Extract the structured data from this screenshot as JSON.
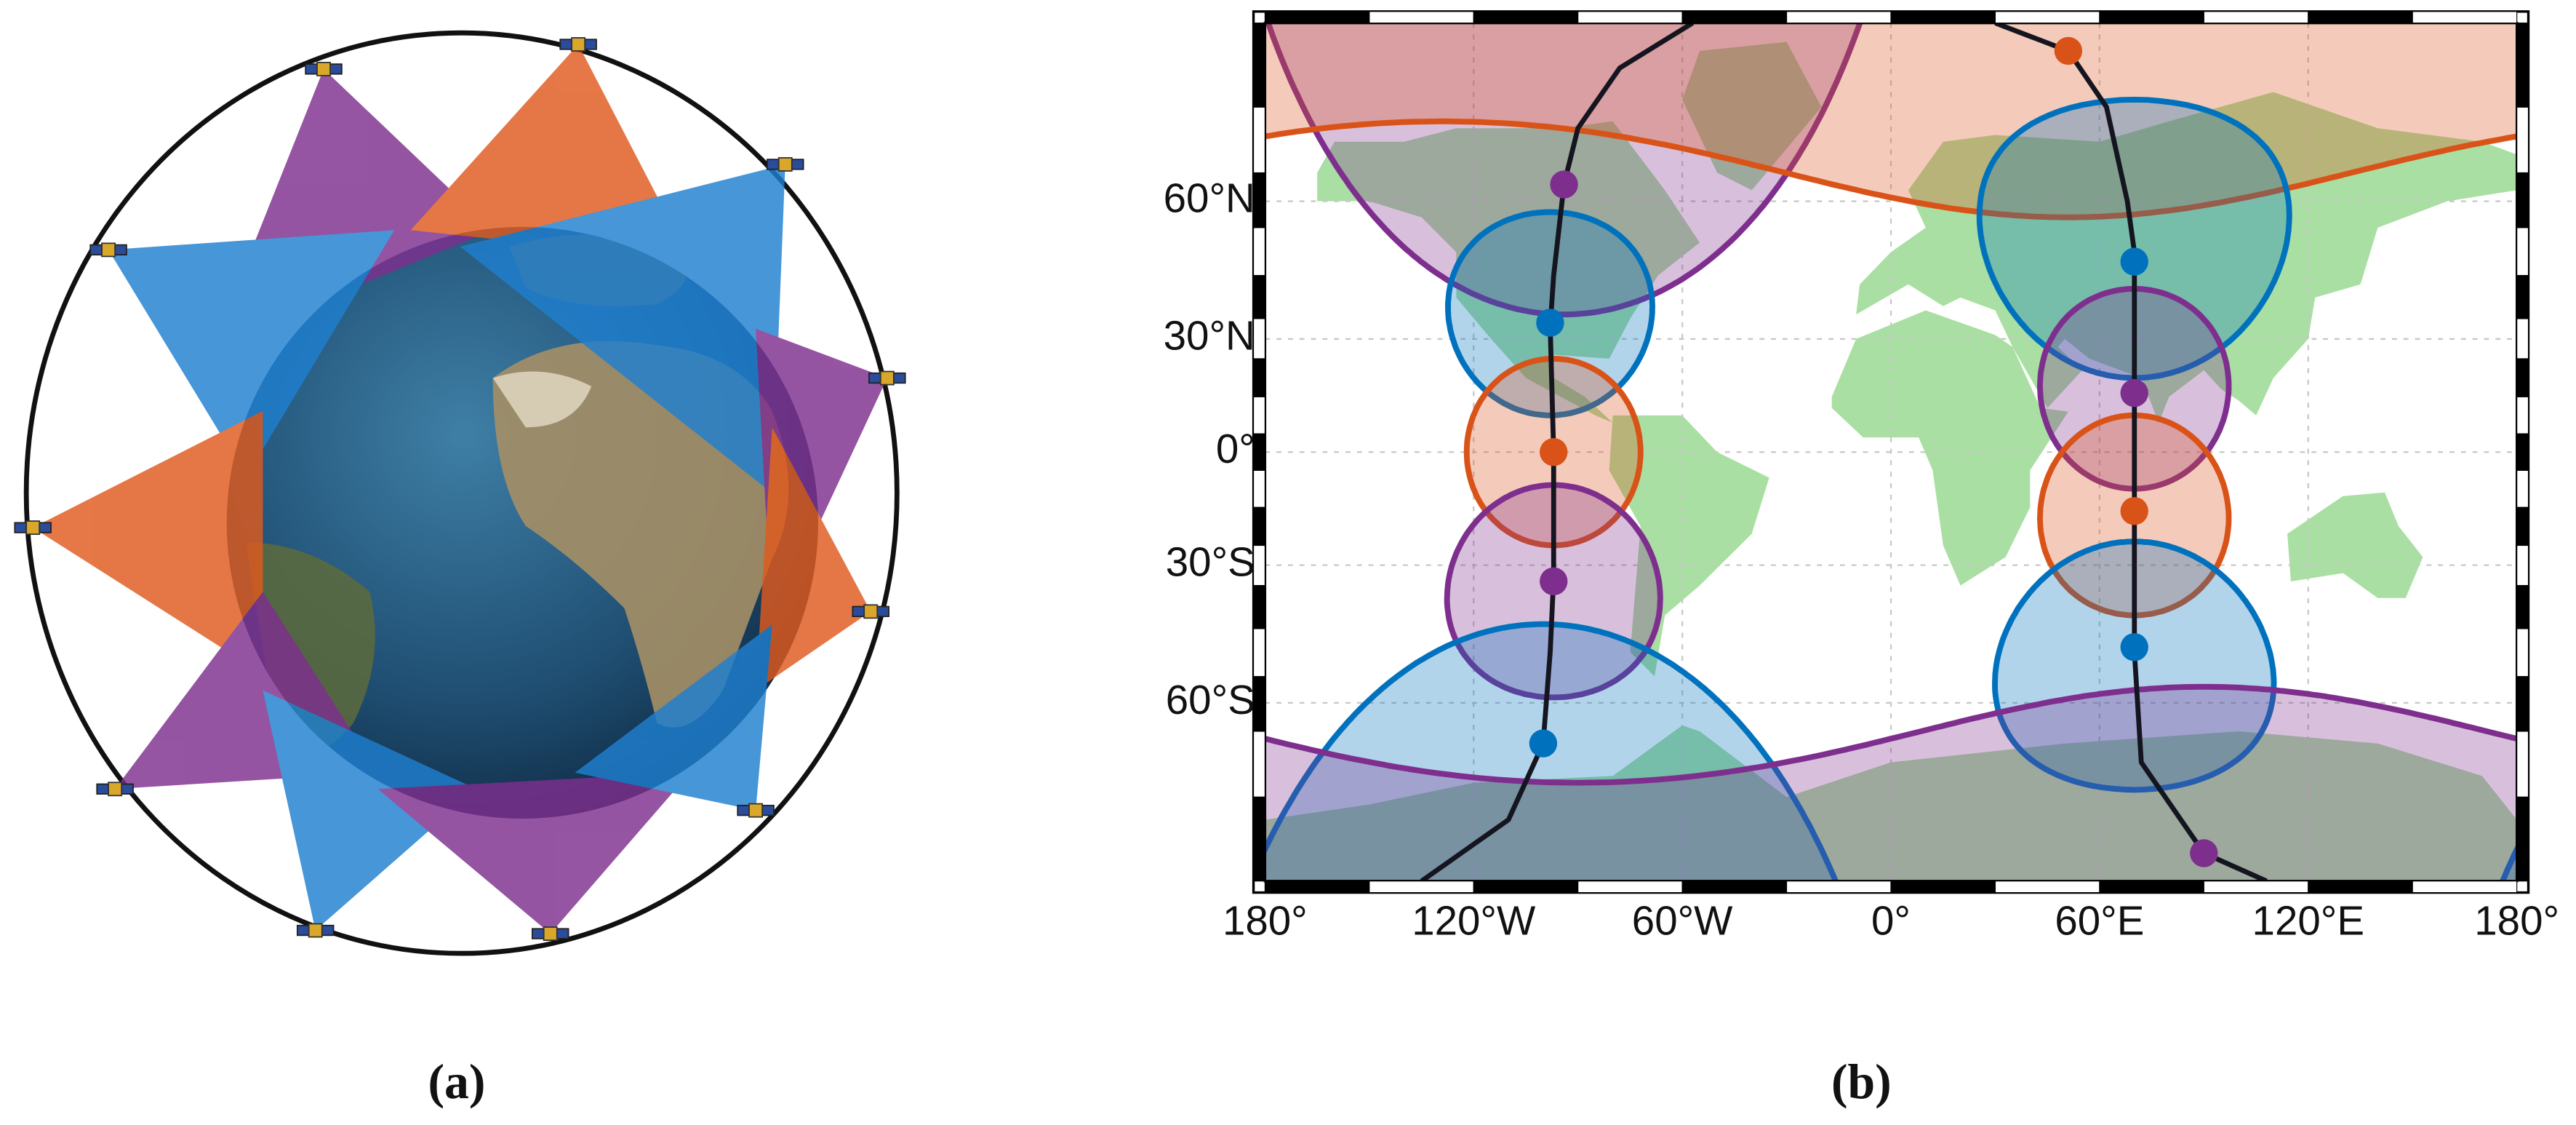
{
  "panel_a": {
    "label": "(a)"
  },
  "panel_b": {
    "label": "(b)",
    "projection": "miller",
    "xlim": [
      -180,
      180
    ],
    "ylim": [
      -85,
      85
    ],
    "grid": true,
    "land_color": "#a9dfa2",
    "xticks": [
      {
        "value": -180,
        "label": "180°"
      },
      {
        "value": -120,
        "label": "120°W"
      },
      {
        "value": -60,
        "label": "60°W"
      },
      {
        "value": 0,
        "label": "0°"
      },
      {
        "value": 60,
        "label": "60°E"
      },
      {
        "value": 120,
        "label": "120°E"
      },
      {
        "value": 180,
        "label": "180°"
      }
    ],
    "yticks": [
      {
        "value": 60,
        "label": "60°N"
      },
      {
        "value": 30,
        "label": "30°N"
      },
      {
        "value": 0,
        "label": "0°"
      },
      {
        "value": -30,
        "label": "30°S"
      },
      {
        "value": -60,
        "label": "60°S"
      }
    ],
    "tracks": [
      {
        "color": "#151520",
        "lon": [
          -57,
          -78,
          -90,
          -94,
          -97,
          -98,
          -97,
          -97,
          -98,
          -100,
          -110,
          -135
        ],
        "lat": [
          85,
          80,
          72,
          63,
          45,
          33,
          0,
          -33,
          -50,
          -67,
          -78,
          -85
        ]
      },
      {
        "color": "#151520",
        "lon": [
          30,
          51,
          62,
          68,
          70,
          70,
          70,
          70,
          72,
          90,
          108
        ],
        "lat": [
          85,
          82,
          75,
          60,
          50,
          16,
          -16,
          -50,
          -70,
          -82,
          -85
        ]
      }
    ],
    "satellites": [
      {
        "color": "#7e2f8e",
        "lon": -94,
        "lat": 63,
        "radius": 27
      },
      {
        "color": "#0072bd",
        "lon": -98,
        "lat": 34,
        "radius": 24
      },
      {
        "color": "#d95319",
        "lon": -97,
        "lat": 0,
        "radius": 25
      },
      {
        "color": "#7e2f8e",
        "lon": -97,
        "lat": -34,
        "radius": 25
      },
      {
        "color": "#0072bd",
        "lon": -100,
        "lat": -67,
        "radius": 23
      },
      {
        "color": "#d95319",
        "lon": 51,
        "lat": 82,
        "radius": 25
      },
      {
        "color": "#0072bd",
        "lon": 70,
        "lat": 48,
        "radius": 28
      },
      {
        "color": "#7e2f8e",
        "lon": 70,
        "lat": 16,
        "radius": 26
      },
      {
        "color": "#d95319",
        "lon": 70,
        "lat": -16,
        "radius": 26
      },
      {
        "color": "#0072bd",
        "lon": 70,
        "lat": -49,
        "radius": 25
      },
      {
        "color": "#7e2f8e",
        "lon": 90,
        "lat": -82,
        "radius": 25
      }
    ]
  }
}
